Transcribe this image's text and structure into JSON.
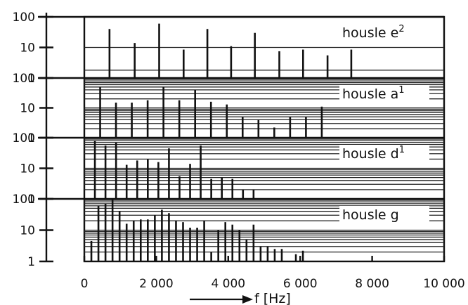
{
  "chart_data": [
    {
      "type": "bar",
      "label": "housle e",
      "label_sup": "2",
      "ylim": [
        1,
        100
      ],
      "yscale": "log",
      "yticks": [
        "1",
        "10",
        "100"
      ],
      "xlim": [
        0,
        10000
      ],
      "x": [
        700,
        1400,
        2080,
        2760,
        3420,
        4080,
        4740,
        5420,
        6080,
        6760,
        7420
      ],
      "values": [
        40,
        14,
        60,
        8.5,
        40,
        11,
        30,
        7.5,
        8.5,
        5.5,
        8.5
      ]
    },
    {
      "type": "bar",
      "label": "housle a",
      "label_sup": "1",
      "ylim": [
        1,
        100
      ],
      "yscale": "log",
      "yticks": [
        "1",
        "10",
        "100"
      ],
      "xlim": [
        0,
        10000
      ],
      "x": [
        440,
        880,
        1320,
        1760,
        2200,
        2640,
        3080,
        3520,
        3960,
        4400,
        4840,
        5280,
        5720,
        6160,
        6600
      ],
      "values": [
        50,
        15,
        15,
        18,
        50,
        18,
        40,
        16,
        13,
        5,
        4,
        2.2,
        5,
        5,
        11
      ]
    },
    {
      "type": "bar",
      "label": "housle d",
      "label_sup": "1",
      "ylim": [
        1,
        100
      ],
      "yscale": "log",
      "yticks": [
        "1",
        "10",
        "100"
      ],
      "xlim": [
        0,
        10000
      ],
      "x": [
        294,
        588,
        882,
        1176,
        1470,
        1764,
        2058,
        2352,
        2646,
        2940,
        3234,
        3528,
        3822,
        4116,
        4410,
        4704
      ],
      "values": [
        80,
        55,
        70,
        13,
        18,
        20,
        16,
        45,
        5.5,
        14,
        55,
        4.5,
        5,
        4.5,
        2,
        2
      ]
    },
    {
      "type": "bar",
      "label": "housle g",
      "label_sup": "",
      "ylim": [
        1,
        100
      ],
      "yscale": "log",
      "yticks": [
        "1",
        "10",
        "100"
      ],
      "xlim": [
        0,
        10000
      ],
      "x": [
        196,
        392,
        588,
        784,
        980,
        1176,
        1372,
        1568,
        1764,
        1960,
        2156,
        2352,
        2548,
        2744,
        2940,
        3136,
        3332,
        3528,
        3724,
        3920,
        4116,
        4312,
        4508,
        4704,
        4900,
        5096,
        5292,
        5488,
        5880,
        6076
      ],
      "values": [
        4.5,
        60,
        70,
        100,
        40,
        16,
        20,
        22,
        22,
        30,
        45,
        35,
        20,
        18,
        12,
        12,
        20,
        2,
        10,
        18,
        15,
        10,
        5,
        15,
        3,
        3,
        2.5,
        2.5,
        1.7,
        2.2
      ]
    }
  ],
  "axes": {
    "x_ticks": [
      "0",
      "2 000",
      "4 000",
      "6 000",
      "8 000",
      "10 000"
    ],
    "x_tick_values": [
      0,
      2000,
      4000,
      6000,
      8000,
      10000
    ],
    "x_label": "f [Hz]"
  }
}
